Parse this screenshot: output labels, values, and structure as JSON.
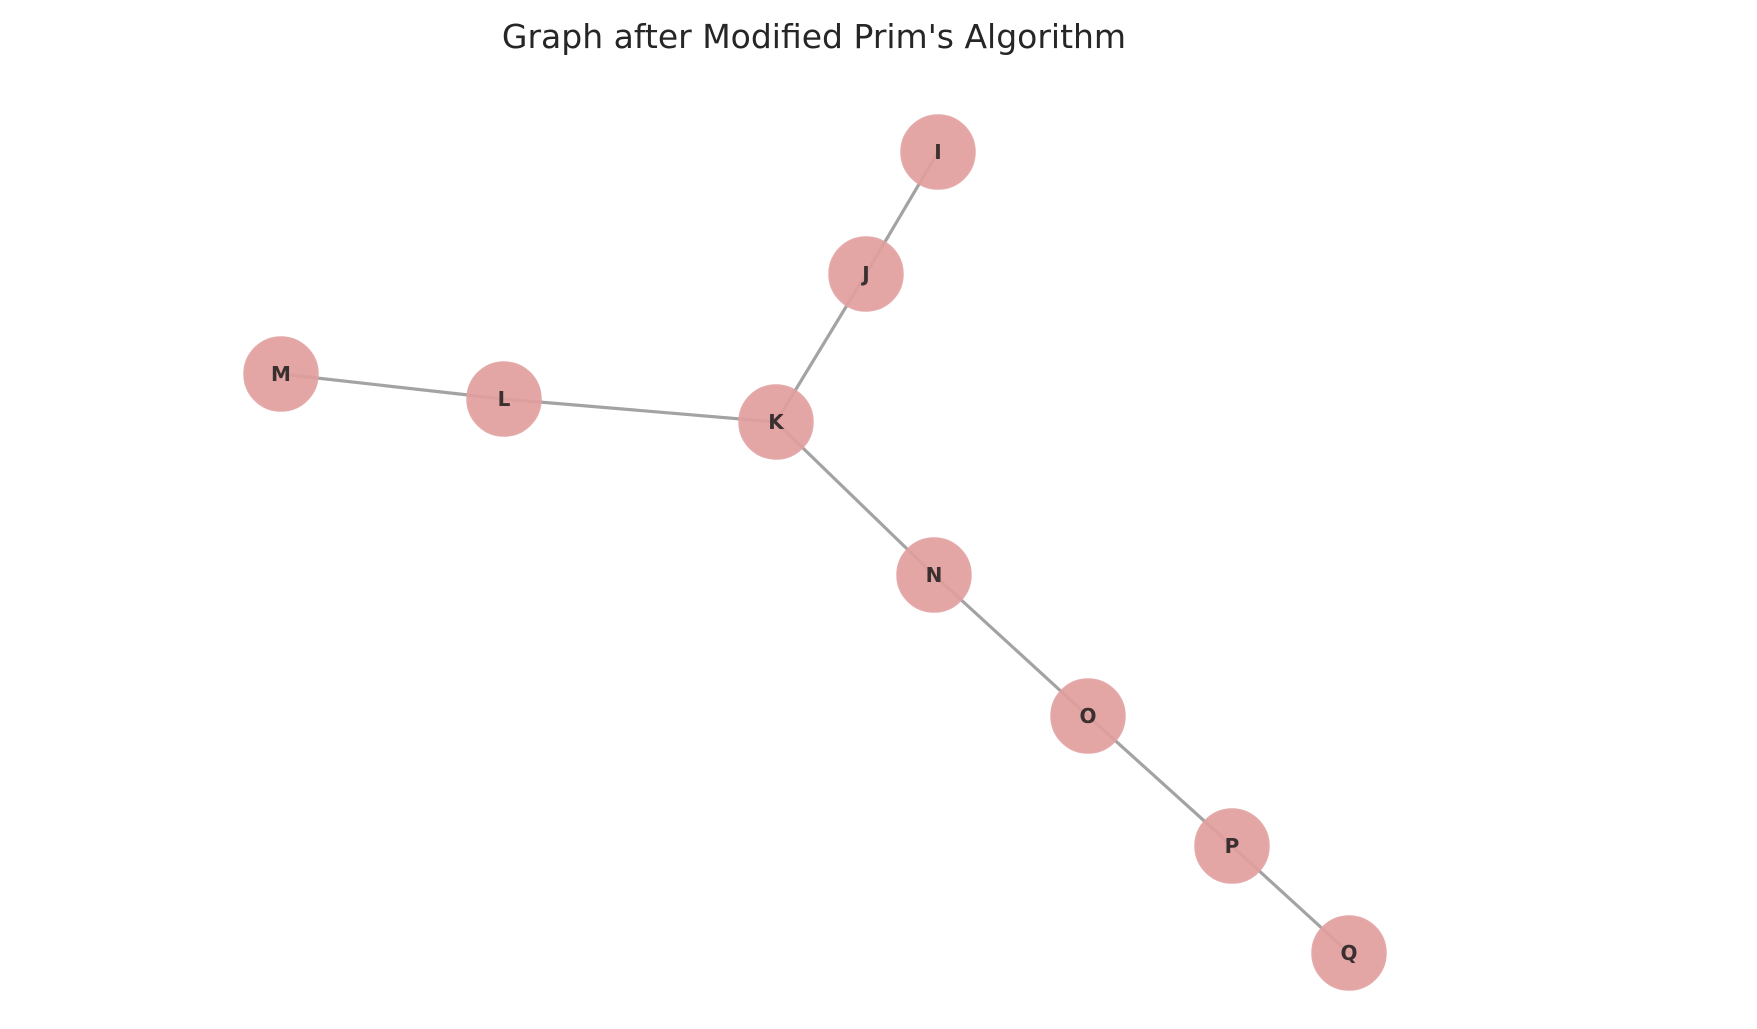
{
  "title": "Graph after Modified Prim's Algorithm",
  "colors": {
    "node_fill": "#e29e9e",
    "edge": "#a3a3a3",
    "label": "#3a3030",
    "title": "#262626",
    "background": "#ffffff"
  },
  "graph": {
    "nodes": [
      "I",
      "J",
      "K",
      "L",
      "M",
      "N",
      "O",
      "P",
      "Q"
    ],
    "edges": [
      [
        "I",
        "J"
      ],
      [
        "J",
        "K"
      ],
      [
        "K",
        "L"
      ],
      [
        "L",
        "M"
      ],
      [
        "K",
        "N"
      ],
      [
        "N",
        "O"
      ],
      [
        "O",
        "P"
      ],
      [
        "P",
        "Q"
      ]
    ]
  }
}
